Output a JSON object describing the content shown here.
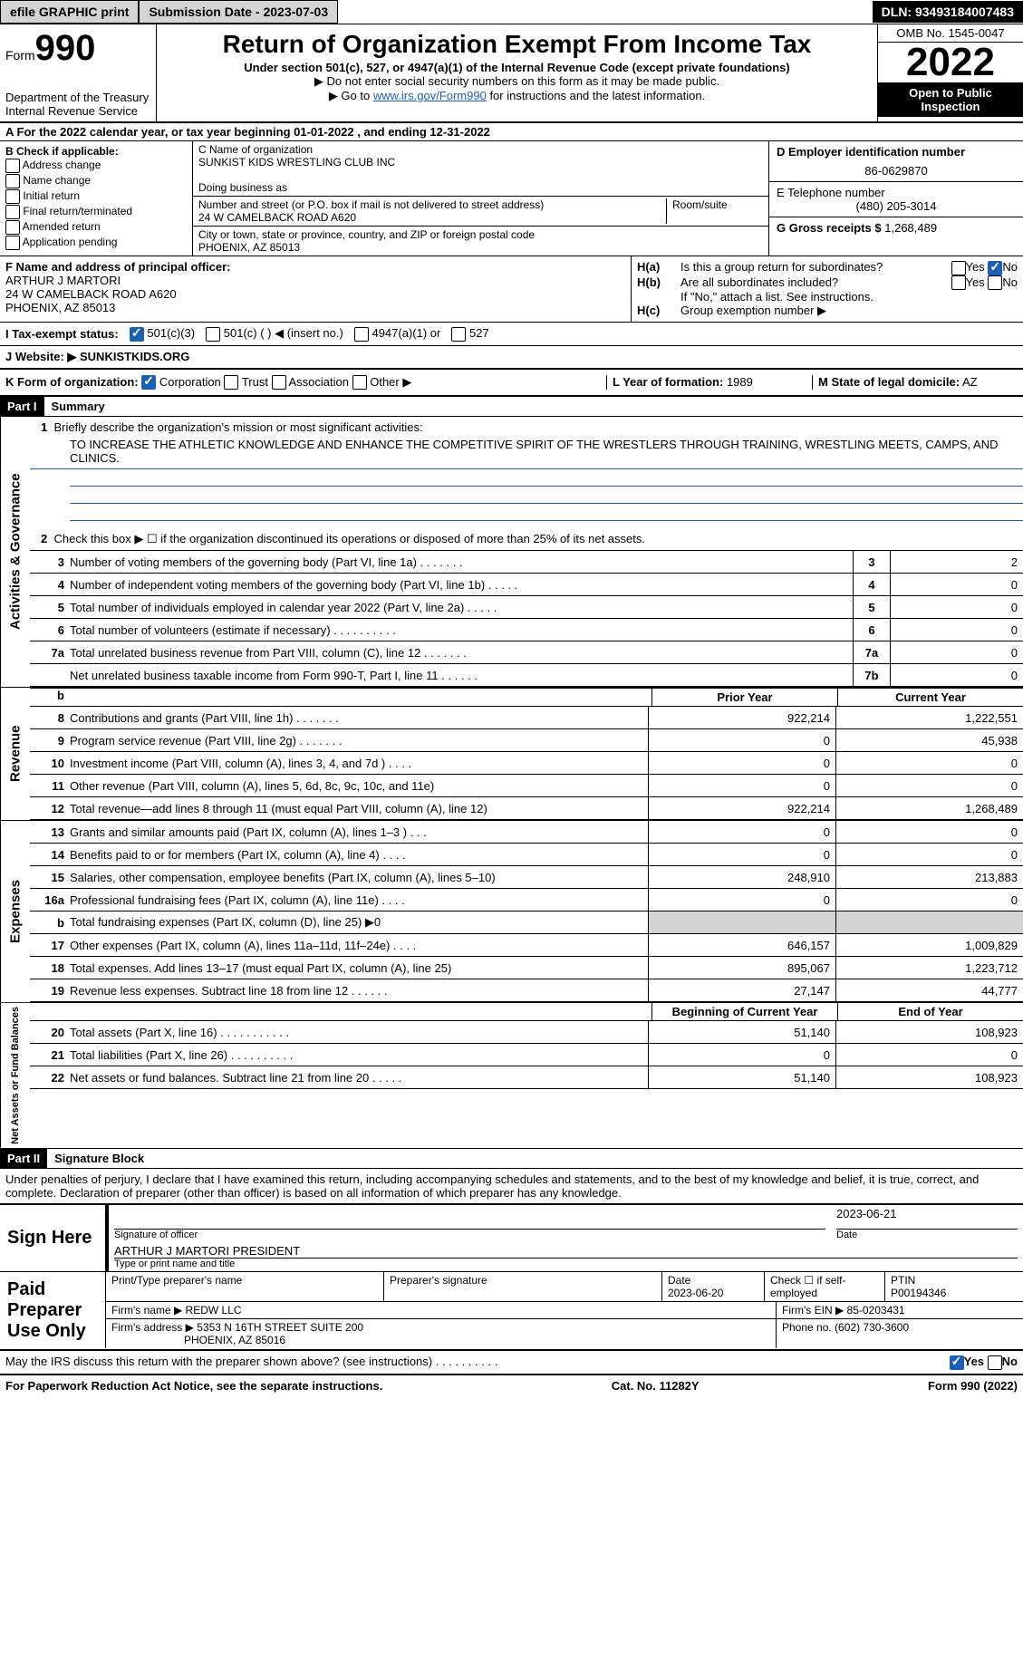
{
  "topbar": {
    "efile": "efile GRAPHIC print",
    "submission_label": "Submission Date - 2023-07-03",
    "dln": "DLN: 93493184007483"
  },
  "header": {
    "form_prefix": "Form",
    "form_number": "990",
    "title": "Return of Organization Exempt From Income Tax",
    "subtitle": "Under section 501(c), 527, or 4947(a)(1) of the Internal Revenue Code (except private foundations)",
    "note1": "▶ Do not enter social security numbers on this form as it may be made public.",
    "note2_pre": "▶ Go to ",
    "note2_link": "www.irs.gov/Form990",
    "note2_post": " for instructions and the latest information.",
    "dept": "Department of the Treasury\nInternal Revenue Service",
    "omb": "OMB No. 1545-0047",
    "year": "2022",
    "otp": "Open to Public Inspection"
  },
  "calendar": "A For the 2022 calendar year, or tax year beginning 01-01-2022   , and ending 12-31-2022",
  "boxB": {
    "label": "B Check if applicable:",
    "items": [
      "Address change",
      "Name change",
      "Initial return",
      "Final return/terminated",
      "Amended return",
      "Application pending"
    ]
  },
  "boxC": {
    "name_label": "C Name of organization",
    "name": "SUNKIST KIDS WRESTLING CLUB INC",
    "dba_label": "Doing business as",
    "addr_label": "Number and street (or P.O. box if mail is not delivered to street address)",
    "addr": "24 W CAMELBACK ROAD A620",
    "room_label": "Room/suite",
    "city_label": "City or town, state or province, country, and ZIP or foreign postal code",
    "city": "PHOENIX, AZ  85013"
  },
  "boxD": {
    "label": "D Employer identification number",
    "value": "86-0629870"
  },
  "boxE": {
    "label": "E Telephone number",
    "value": "(480) 205-3014"
  },
  "boxG": {
    "label": "G Gross receipts $",
    "value": "1,268,489"
  },
  "boxF": {
    "label": "F  Name and address of principal officer:",
    "name": "ARTHUR J MARTORI",
    "addr": "24 W CAMELBACK ROAD A620",
    "city": "PHOENIX, AZ  85013"
  },
  "boxH": {
    "a": "H(a)  Is this a group return for subordinates?",
    "b": "H(b)  Are all subordinates included?",
    "b_note": "If \"No,\" attach a list. See instructions.",
    "c": "H(c)  Group exemption number ▶",
    "yes": "Yes",
    "no": "No"
  },
  "boxI": {
    "label": "I    Tax-exempt status:",
    "opts": [
      "501(c)(3)",
      "501(c) (  ) ◀ (insert no.)",
      "4947(a)(1) or",
      "527"
    ]
  },
  "boxJ": {
    "label": "J   Website: ▶",
    "value": "  SUNKISTKIDS.ORG"
  },
  "boxK": {
    "label": "K Form of organization:",
    "opts": [
      "Corporation",
      "Trust",
      "Association",
      "Other ▶"
    ]
  },
  "boxL": {
    "label": "L Year of formation:",
    "value": "1989"
  },
  "boxM": {
    "label": "M State of legal domicile:",
    "value": "AZ"
  },
  "part1": {
    "label": "Part I",
    "title": "Summary"
  },
  "summary": {
    "l1_label": "1   Briefly describe the organization's mission or most significant activities:",
    "mission": "TO INCREASE THE ATHLETIC KNOWLEDGE AND ENHANCE THE COMPETITIVE SPIRIT OF THE WRESTLERS THROUGH TRAINING, WRESTLING MEETS, CAMPS, AND CLINICS.",
    "l2": "Check this box ▶ ☐  if the organization discontinued its operations or disposed of more than 25% of its net assets.",
    "lines_ag": [
      {
        "n": "3",
        "d": "Number of voting members of the governing body (Part VI, line 1a)   .     .     .     .     .     .     .",
        "b": "3",
        "v": "2"
      },
      {
        "n": "4",
        "d": "Number of independent voting members of the governing body (Part VI, line 1b)   .     .     .     .     .",
        "b": "4",
        "v": "0"
      },
      {
        "n": "5",
        "d": "Total number of individuals employed in calendar year 2022 (Part V, line 2a)   .     .     .     .     .",
        "b": "5",
        "v": "0"
      },
      {
        "n": "6",
        "d": "Total number of volunteers (estimate if necessary)   .     .     .     .     .     .     .     .     .     .",
        "b": "6",
        "v": "0"
      },
      {
        "n": "7a",
        "d": "Total unrelated business revenue from Part VIII, column (C), line 12   .     .     .     .     .     .     .",
        "b": "7a",
        "v": "0"
      },
      {
        "n": "",
        "d": "Net unrelated business taxable income from Form 990-T, Part I, line 11   .     .     .     .     .     .",
        "b": "7b",
        "v": "0"
      }
    ],
    "col_prior": "Prior Year",
    "col_current": "Current Year",
    "revenue": [
      {
        "n": "8",
        "d": "Contributions and grants (Part VIII, line 1h)   .     .     .     .     .     .     .",
        "p": "922,214",
        "c": "1,222,551"
      },
      {
        "n": "9",
        "d": "Program service revenue (Part VIII, line 2g)   .     .     .     .     .     .     .",
        "p": "0",
        "c": "45,938"
      },
      {
        "n": "10",
        "d": "Investment income (Part VIII, column (A), lines 3, 4, and 7d )   .     .     .     .",
        "p": "0",
        "c": "0"
      },
      {
        "n": "11",
        "d": "Other revenue (Part VIII, column (A), lines 5, 6d, 8c, 9c, 10c, and 11e)",
        "p": "0",
        "c": "0"
      },
      {
        "n": "12",
        "d": "Total revenue—add lines 8 through 11 (must equal Part VIII, column (A), line 12)",
        "p": "922,214",
        "c": "1,268,489"
      }
    ],
    "expenses": [
      {
        "n": "13",
        "d": "Grants and similar amounts paid (Part IX, column (A), lines 1–3 )   .     .     .",
        "p": "0",
        "c": "0"
      },
      {
        "n": "14",
        "d": "Benefits paid to or for members (Part IX, column (A), line 4)   .     .     .     .",
        "p": "0",
        "c": "0"
      },
      {
        "n": "15",
        "d": "Salaries, other compensation, employee benefits (Part IX, column (A), lines 5–10)",
        "p": "248,910",
        "c": "213,883"
      },
      {
        "n": "16a",
        "d": "Professional fundraising fees (Part IX, column (A), line 11e)   .     .     .     .",
        "p": "0",
        "c": "0"
      },
      {
        "n": "b",
        "d": "Total fundraising expenses (Part IX, column (D), line 25) ▶0",
        "p": "",
        "c": "",
        "shade": true
      },
      {
        "n": "17",
        "d": "Other expenses (Part IX, column (A), lines 11a–11d, 11f–24e)   .     .     .     .",
        "p": "646,157",
        "c": "1,009,829"
      },
      {
        "n": "18",
        "d": "Total expenses. Add lines 13–17 (must equal Part IX, column (A), line 25)",
        "p": "895,067",
        "c": "1,223,712"
      },
      {
        "n": "19",
        "d": "Revenue less expenses. Subtract line 18 from line 12   .     .     .     .     .     .",
        "p": "27,147",
        "c": "44,777"
      }
    ],
    "col_begin": "Beginning of Current Year",
    "col_end": "End of Year",
    "netassets": [
      {
        "n": "20",
        "d": "Total assets (Part X, line 16)   .     .     .     .     .     .     .     .     .     .     .",
        "p": "51,140",
        "c": "108,923"
      },
      {
        "n": "21",
        "d": "Total liabilities (Part X, line 26)   .     .     .     .     .     .     .     .     .     .",
        "p": "0",
        "c": "0"
      },
      {
        "n": "22",
        "d": "Net assets or fund balances. Subtract line 21 from line 20   .     .     .     .     .",
        "p": "51,140",
        "c": "108,923"
      }
    ],
    "side_ag": "Activities & Governance",
    "side_rev": "Revenue",
    "side_exp": "Expenses",
    "side_na": "Net Assets or Fund Balances",
    "b_label": "b"
  },
  "part2": {
    "label": "Part II",
    "title": "Signature Block"
  },
  "declaration": "Under penalties of perjury, I declare that I have examined this return, including accompanying schedules and statements, and to the best of my knowledge and belief, it is true, correct, and complete. Declaration of preparer (other than officer) is based on all information of which preparer has any knowledge.",
  "sign": {
    "side": "Sign Here",
    "sig_label": "Signature of officer",
    "date": "2023-06-21",
    "date_label": "Date",
    "name": "ARTHUR J MARTORI PRESIDENT",
    "name_label": "Type or print name and title"
  },
  "preparer": {
    "side": "Paid Preparer Use Only",
    "h_name": "Print/Type preparer's name",
    "h_sig": "Preparer's signature",
    "h_date": "Date",
    "date": "2023-06-20",
    "h_check": "Check ☐ if self-employed",
    "h_ptin": "PTIN",
    "ptin": "P00194346",
    "firm_label": "Firm's name    ▶",
    "firm": "REDW LLC",
    "ein_label": "Firm's EIN ▶",
    "ein": "85-0203431",
    "addr_label": "Firm's address ▶",
    "addr": "5353 N 16TH STREET SUITE 200",
    "city": "PHOENIX, AZ  85016",
    "phone_label": "Phone no.",
    "phone": "(602) 730-3600"
  },
  "discuss": "May the IRS discuss this return with the preparer shown above? (see instructions)   .     .     .     .     .     .     .     .     .     .",
  "footer": {
    "left": "For Paperwork Reduction Act Notice, see the separate instructions.",
    "mid": "Cat. No. 11282Y",
    "right": "Form 990 (2022)"
  }
}
